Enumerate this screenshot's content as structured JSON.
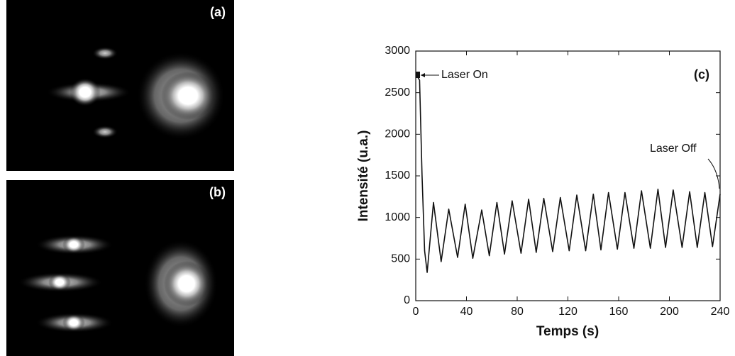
{
  "panels": [
    {
      "label": "(a)"
    },
    {
      "label": "(b)"
    }
  ],
  "chart_data": {
    "type": "line",
    "panel_label": "(c)",
    "xlabel": "Temps (s)",
    "ylabel": "Intensité (u.a.)",
    "annotations": [
      "Laser On",
      "Laser Off"
    ],
    "x": [
      0,
      1,
      3,
      5,
      7,
      9,
      14,
      20,
      26,
      33,
      39,
      45,
      52,
      58,
      64,
      70,
      76,
      83,
      89,
      95,
      101,
      108,
      114,
      121,
      127,
      134,
      140,
      146,
      152,
      159,
      165,
      172,
      178,
      185,
      191,
      197,
      203,
      210,
      216,
      222,
      228,
      234,
      240
    ],
    "series": [
      {
        "color": "#111111",
        "values": [
          2700,
          2700,
          2650,
          1500,
          600,
          340,
          1180,
          470,
          1100,
          520,
          1160,
          510,
          1090,
          540,
          1180,
          560,
          1200,
          570,
          1220,
          580,
          1230,
          590,
          1240,
          600,
          1270,
          600,
          1280,
          610,
          1300,
          620,
          1300,
          630,
          1320,
          630,
          1340,
          640,
          1330,
          640,
          1310,
          640,
          1300,
          650,
          1280
        ]
      }
    ],
    "xlim": [
      0,
      240
    ],
    "ylim": [
      0,
      3000
    ],
    "xticks": [
      0,
      40,
      80,
      120,
      160,
      200,
      240
    ],
    "yticks": [
      0,
      500,
      1000,
      1500,
      2000,
      2500,
      3000
    ]
  }
}
